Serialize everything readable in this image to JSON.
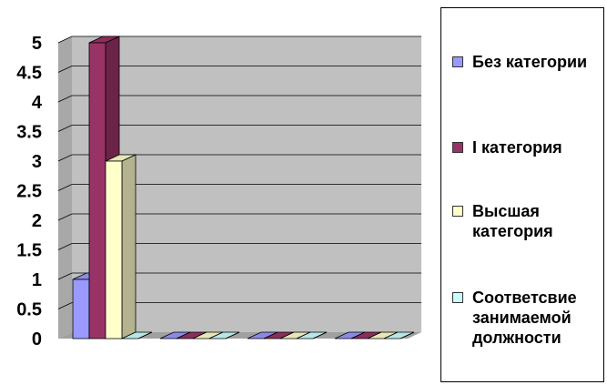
{
  "chart_data": {
    "type": "bar",
    "categories": [
      "",
      "",
      "",
      ""
    ],
    "series": [
      {
        "name": "Без категории",
        "values": [
          1,
          0,
          0,
          0
        ],
        "color": "#9999ff"
      },
      {
        "name": "I категория",
        "values": [
          5,
          0,
          0,
          0
        ],
        "color": "#993366"
      },
      {
        "name": "Высшая категория",
        "values": [
          3,
          0,
          0,
          0
        ],
        "color": "#ffffcc"
      },
      {
        "name": "Соответсвие занимаемой должности",
        "values": [
          0,
          0,
          0,
          0
        ],
        "color": "#ccffff"
      }
    ],
    "title": "",
    "xlabel": "",
    "ylabel": "",
    "ylim": [
      0,
      5
    ],
    "yticks": [
      "0",
      "0.5",
      "1",
      "1.5",
      "2",
      "2.5",
      "3",
      "3.5",
      "4",
      "4.5",
      "5"
    ],
    "grid": true,
    "legend_position": "right",
    "wall_color": "#c0c0c0"
  }
}
